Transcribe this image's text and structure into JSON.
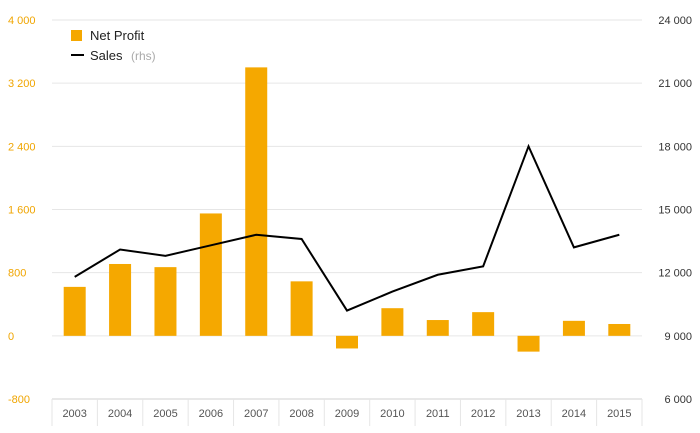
{
  "chart_data": {
    "type": "bar",
    "categories": [
      "2003",
      "2004",
      "2005",
      "2006",
      "2007",
      "2008",
      "2009",
      "2010",
      "2011",
      "2012",
      "2013",
      "2014",
      "2015"
    ],
    "series": [
      {
        "name": "Net Profit",
        "type": "bar",
        "axis": "left",
        "color": "#f5a800",
        "values": [
          620,
          910,
          870,
          1550,
          3400,
          690,
          -160,
          350,
          200,
          300,
          -200,
          190,
          150
        ]
      },
      {
        "name": "Sales",
        "type": "line",
        "axis": "right",
        "color": "#000000",
        "values": [
          11800,
          13100,
          12800,
          13300,
          13800,
          13600,
          10200,
          11100,
          11900,
          12300,
          18000,
          13200,
          13800
        ]
      }
    ],
    "legend": {
      "position": "top-left",
      "items": [
        {
          "label": "Net Profit",
          "suffix": ""
        },
        {
          "label": "Sales",
          "suffix": "(rhs)"
        }
      ]
    },
    "y_left": {
      "ylim": [
        -800,
        4000
      ],
      "ticks": [
        -800,
        0,
        800,
        1600,
        2400,
        3200,
        4000
      ],
      "tick_labels": [
        "-800",
        "0",
        "800",
        "1 600",
        "2 400",
        "3 200",
        "4 000"
      ],
      "color": "#f0a500"
    },
    "y_right": {
      "ylim": [
        6000,
        24000
      ],
      "ticks": [
        6000,
        9000,
        12000,
        15000,
        18000,
        21000,
        24000
      ],
      "tick_labels": [
        "6 000",
        "9 000",
        "12 000",
        "15 000",
        "18 000",
        "21 000",
        "24 000"
      ],
      "color": "#333333"
    },
    "grid": true,
    "title": "",
    "xlabel": "",
    "ylabel": ""
  }
}
